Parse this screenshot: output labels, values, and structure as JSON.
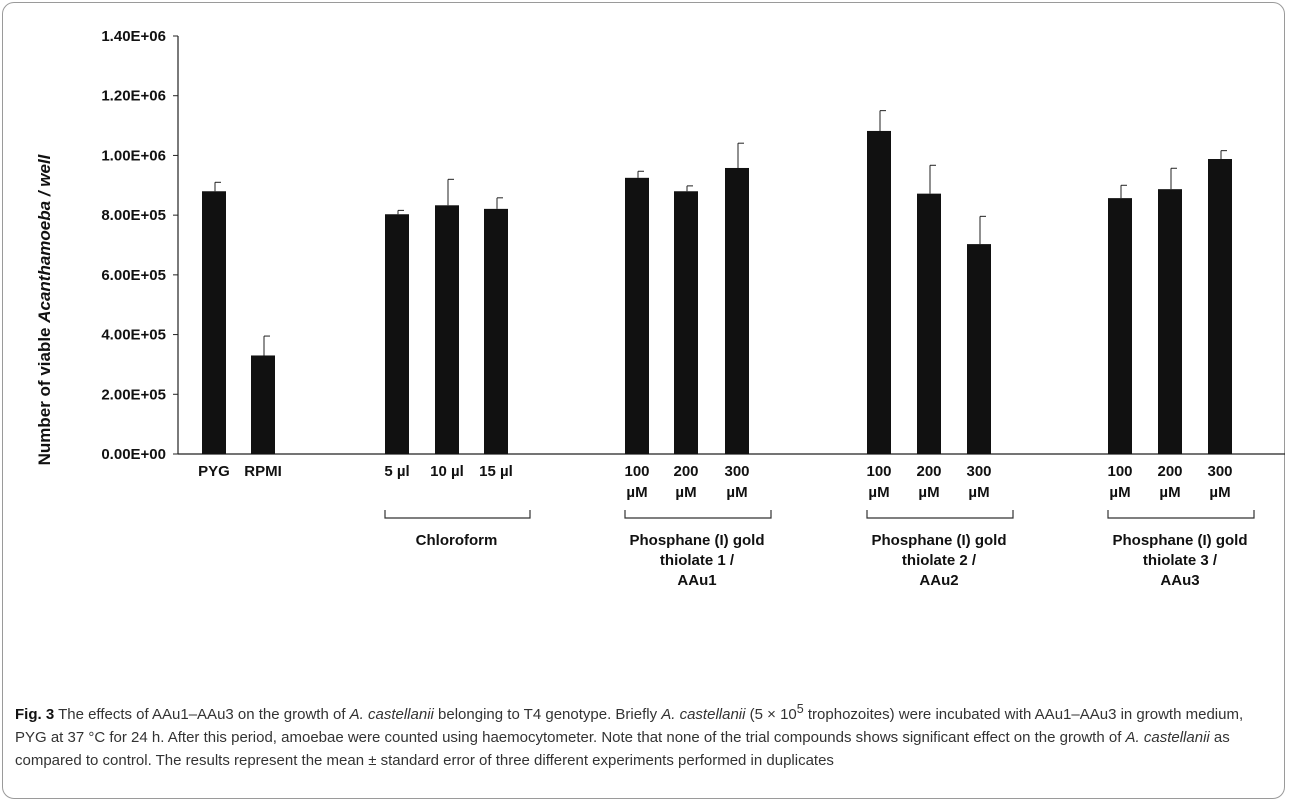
{
  "chart_data": {
    "type": "bar",
    "ylabel_plain": "Number of viable ",
    "ylabel_italic": "Acanthamoeba / well",
    "ylim": [
      0,
      1400000
    ],
    "ticks": [
      "0.00E+00",
      "2.00E+05",
      "4.00E+05",
      "6.00E+05",
      "8.00E+05",
      "1.00E+06",
      "1.20E+06",
      "1.40E+06"
    ],
    "bars": [
      {
        "label": [
          "PYG"
        ],
        "value": 880000,
        "error": 30000
      },
      {
        "label": [
          "RPMI"
        ],
        "value": 330000,
        "error": 65000
      },
      {
        "label": [
          "5 µl"
        ],
        "value": 803000,
        "error": 13000
      },
      {
        "label": [
          "10 µl"
        ],
        "value": 833000,
        "error": 87000
      },
      {
        "label": [
          "15 µl"
        ],
        "value": 821000,
        "error": 37000
      },
      {
        "label": [
          "100",
          "µM"
        ],
        "value": 925000,
        "error": 22000
      },
      {
        "label": [
          "200",
          "µM"
        ],
        "value": 880000,
        "error": 18000
      },
      {
        "label": [
          "300",
          "µM"
        ],
        "value": 958000,
        "error": 83000
      },
      {
        "label": [
          "100",
          "µM"
        ],
        "value": 1082000,
        "error": 68000
      },
      {
        "label": [
          "200",
          "µM"
        ],
        "value": 872000,
        "error": 95000
      },
      {
        "label": [
          "300",
          "µM"
        ],
        "value": 703000,
        "error": 93000
      },
      {
        "label": [
          "100",
          "µM"
        ],
        "value": 857000,
        "error": 43000
      },
      {
        "label": [
          "200",
          "µM"
        ],
        "value": 887000,
        "error": 70000
      },
      {
        "label": [
          "300",
          "µM"
        ],
        "value": 988000,
        "error": 28000
      }
    ],
    "groups": [
      {
        "label": [
          "Chloroform"
        ],
        "from": 2,
        "to": 4
      },
      {
        "label": [
          "Phosphane (I) gold",
          "thiolate 1 /",
          "AAu1"
        ],
        "from": 5,
        "to": 7
      },
      {
        "label": [
          "Phosphane (I) gold",
          "thiolate 2 /",
          "AAu2"
        ],
        "from": 8,
        "to": 10
      },
      {
        "label": [
          "Phosphane (I) gold",
          "thiolate 3 /",
          "AAu3"
        ],
        "from": 11,
        "to": 13
      }
    ],
    "bar_color": "#111111"
  },
  "caption": {
    "fig_label": "Fig. 3",
    "t1": " The effects of AAu1–AAu3 on the growth of ",
    "i1": "A. castellanii",
    "t2": " belonging to T4 genotype. Briefly ",
    "i2": "A. castellanii",
    "t3": " (5 × 10",
    "sup": "5",
    "t4": " trophozoites) were incubated with AAu1–AAu3 in growth medium, PYG at 37 °C for 24 h. After this period, amoebae were counted using haemocytometer. Note that none of the trial compounds shows significant effect on the growth of ",
    "i3": "A. castellanii",
    "t5": " as compared to control. The results represent the mean ± standard error of three different experiments performed in duplicates"
  }
}
